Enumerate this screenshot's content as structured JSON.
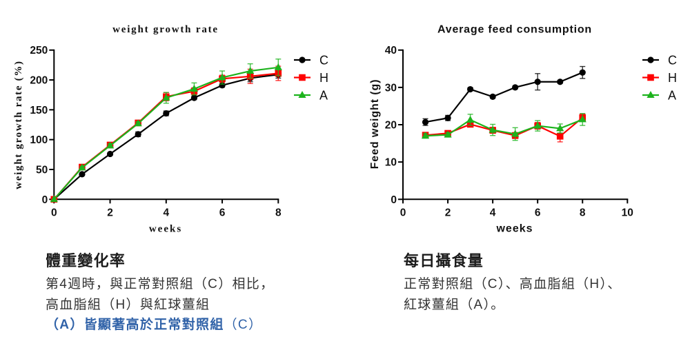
{
  "chart_data": [
    {
      "type": "line",
      "title": "weight growth rate",
      "xlabel": "weeks",
      "ylabel": "weight growth rate (%)",
      "x": [
        0,
        1,
        2,
        3,
        4,
        5,
        6,
        7,
        8
      ],
      "xlim": [
        0,
        8
      ],
      "ylim": [
        0,
        250
      ],
      "xticks": [
        0,
        2,
        4,
        6,
        8
      ],
      "yticks": [
        0,
        50,
        100,
        150,
        200,
        250
      ],
      "grid": false,
      "legend": "right",
      "error_bars": true,
      "series": [
        {
          "name": "C",
          "color": "#000000",
          "marker": "circle",
          "values": [
            0,
            42,
            76,
            109,
            144,
            170,
            191,
            203,
            209
          ],
          "errors": [
            0,
            2,
            2,
            4,
            4,
            3,
            3,
            6,
            6
          ]
        },
        {
          "name": "H",
          "color": "#ff0000",
          "marker": "square",
          "values": [
            0,
            54,
            91,
            128,
            172,
            181,
            202,
            206,
            211
          ],
          "errors": [
            0,
            2,
            3,
            3,
            7,
            6,
            6,
            12,
            12
          ]
        },
        {
          "name": "A",
          "color": "#1db31d",
          "marker": "triangle",
          "values": [
            0,
            53,
            90,
            127,
            170,
            185,
            204,
            215,
            221
          ],
          "errors": [
            0,
            2,
            3,
            3,
            9,
            10,
            11,
            12,
            14
          ]
        }
      ]
    },
    {
      "type": "line",
      "title": "Average feed consumption",
      "xlabel": "weeks",
      "ylabel": "Feed weight (g)",
      "x": [
        1,
        2,
        3,
        4,
        5,
        6,
        7,
        8
      ],
      "xlim": [
        0,
        10
      ],
      "ylim": [
        0,
        40
      ],
      "xticks": [
        0,
        2,
        4,
        6,
        8,
        10
      ],
      "yticks": [
        0,
        10,
        20,
        30,
        40
      ],
      "grid": false,
      "legend": "right",
      "error_bars": true,
      "series": [
        {
          "name": "C",
          "color": "#000000",
          "marker": "circle",
          "values": [
            20.7,
            21.8,
            29.5,
            27.5,
            30.0,
            31.5,
            31.5,
            34.0
          ],
          "errors": [
            0.9,
            0.7,
            0.4,
            0.4,
            0.4,
            2.2,
            0.4,
            1.6
          ]
        },
        {
          "name": "H",
          "color": "#ff0000",
          "marker": "square",
          "values": [
            17.2,
            17.7,
            20.1,
            18.5,
            17.1,
            19.7,
            16.9,
            21.9
          ],
          "errors": [
            0.7,
            0.6,
            0.6,
            0.8,
            0.8,
            0.9,
            1.5,
            1.0
          ]
        },
        {
          "name": "A",
          "color": "#1db31d",
          "marker": "triangle",
          "values": [
            17.0,
            17.3,
            21.3,
            18.6,
            17.5,
            19.7,
            19.0,
            21.4
          ],
          "errors": [
            0.6,
            0.6,
            1.5,
            1.5,
            1.7,
            1.4,
            1.2,
            1.6
          ]
        }
      ]
    }
  ],
  "captions": {
    "weight_change": {
      "heading": "體重變化率",
      "lines": [
        "第4週時，與正常對照組（C）相比，",
        "高血脂組（H）與紅球薑組"
      ],
      "highlight": {
        "bold": "（A）皆顯著高於正常對照組",
        "regular": "（C）"
      }
    },
    "feed_intake": {
      "heading": "每日攝食量",
      "lines": [
        "正常對照組（C）、高血脂組（H）、",
        "紅球薑組（A）。"
      ]
    }
  },
  "colors": {
    "highlight": "#3062a8",
    "text": "#333333",
    "series_C": "#000000",
    "series_H": "#ff0000",
    "series_A": "#1db31d"
  }
}
